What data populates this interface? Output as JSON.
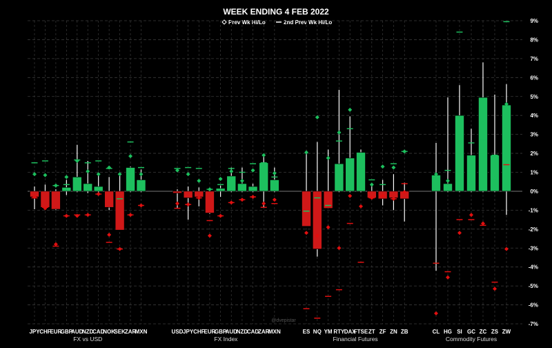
{
  "chart_data": {
    "type": "candlestick",
    "title": "WEEK ENDING 4 FEB 2022",
    "legend": [
      {
        "label": "Prev Wk Hi/Lo",
        "marker": "diamond"
      },
      {
        "label": "2nd Prev Wk Hi/Lo",
        "marker": "dash"
      }
    ],
    "y_axis": {
      "side": "right",
      "min": -7,
      "max": 9,
      "step": 1,
      "unit": "%",
      "tick_labels": [
        "-7%",
        "-6%",
        "-5%",
        "-4%",
        "-3%",
        "-2%",
        "-1%",
        "0%",
        "1%",
        "2%",
        "3%",
        "4%",
        "5%",
        "6%",
        "7%",
        "8%",
        "9%"
      ]
    },
    "watermark": "@dvepistar",
    "colors": {
      "up": "#1dbf5e",
      "down": "#d01818",
      "prev_up": "#1dbf5e",
      "prev_down": "#e01010",
      "wick": "#ffffff",
      "grid": "#3a3a3a"
    },
    "groups": [
      {
        "label": "FX vs USD",
        "items": [
          {
            "name": "JPY",
            "o": 0,
            "c": -0.3,
            "h": 0.25,
            "l": -0.95,
            "ph": 0.9,
            "pl": -0.3,
            "p2h": 1.5,
            "p2l": -0.35
          },
          {
            "name": "CHF",
            "o": 0,
            "c": -0.85,
            "h": 0.35,
            "l": -0.95,
            "ph": 0.85,
            "pl": -0.9,
            "p2h": 1.6,
            "p2l": -0.85
          },
          {
            "name": "EUR",
            "o": 0,
            "c": -0.95,
            "h": 0.1,
            "l": -1.0,
            "ph": 0.3,
            "pl": -2.8,
            "p2h": 0.3,
            "p2l": -2.9
          },
          {
            "name": "GBP",
            "o": 0,
            "c": 0.2,
            "h": 0.6,
            "l": -0.2,
            "ph": 0.75,
            "pl": -1.3,
            "p2h": 0.35,
            "p2l": -1.3
          },
          {
            "name": "AUD",
            "o": 0,
            "c": 0.75,
            "h": 2.45,
            "l": -0.05,
            "ph": 1.6,
            "pl": -1.3,
            "p2h": 1.65,
            "p2l": -1.25
          },
          {
            "name": "NZD",
            "o": 0,
            "c": 0.4,
            "h": 1.6,
            "l": -0.1,
            "ph": 1.05,
            "pl": -1.25,
            "p2h": 1.5,
            "p2l": -1.25
          },
          {
            "name": "CAD",
            "o": 0,
            "c": 0.25,
            "h": 0.85,
            "l": -0.15,
            "ph": 0.9,
            "pl": -0.15,
            "p2h": 1.6,
            "p2l": -0.15
          },
          {
            "name": "NOK",
            "o": 0,
            "c": -0.85,
            "h": 0.75,
            "l": -1.0,
            "ph": 1.25,
            "pl": -2.3,
            "p2h": 1.2,
            "p2l": -2.7
          },
          {
            "name": "SEK",
            "o": 0,
            "c": -2.05,
            "h": 0.85,
            "l": -2.05,
            "ph": 0.9,
            "pl": -3.05,
            "p2h": -0.4,
            "p2l": -3.05
          },
          {
            "name": "ZAR",
            "o": 0,
            "c": 1.25,
            "h": 1.3,
            "l": -0.05,
            "ph": 1.85,
            "pl": -1.25,
            "p2h": 2.6,
            "p2l": -1.25
          },
          {
            "name": "MXN",
            "o": 0,
            "c": 0.6,
            "h": 1.15,
            "l": -0.05,
            "ph": 0.9,
            "pl": -0.75,
            "p2h": 1.25,
            "p2l": -0.75
          }
        ]
      },
      {
        "label": "FX Index",
        "items": [
          {
            "name": "USD",
            "o": 0,
            "c": -0.1,
            "h": 0.1,
            "l": -0.9,
            "ph": 1.1,
            "pl": -0.65,
            "p2h": 1.2,
            "p2l": -0.9
          },
          {
            "name": "JPY",
            "o": 0,
            "c": -0.35,
            "h": 0.25,
            "l": -1.5,
            "ph": 0.9,
            "pl": -0.7,
            "p2h": 1.25,
            "p2l": -0.7
          },
          {
            "name": "CHF",
            "o": 0,
            "c": -0.3,
            "h": 0.2,
            "l": -0.8,
            "ph": 0.55,
            "pl": -0.35,
            "p2h": 1.2,
            "p2l": -0.35
          },
          {
            "name": "EUR",
            "o": 0,
            "c": -1.15,
            "h": 0.1,
            "l": -1.2,
            "ph": 0.1,
            "pl": -2.35,
            "p2h": 0.1,
            "p2l": -1.55
          },
          {
            "name": "GBP",
            "o": 0,
            "c": 0.15,
            "h": 0.3,
            "l": -0.3,
            "ph": 0.65,
            "pl": -1.3,
            "p2h": 0.35,
            "p2l": -1.3
          },
          {
            "name": "AUD",
            "o": 0,
            "c": 0.8,
            "h": 1.25,
            "l": -0.05,
            "ph": 1.05,
            "pl": -0.6,
            "p2h": 1.2,
            "p2l": -0.6
          },
          {
            "name": "NZD",
            "o": 0,
            "c": 0.4,
            "h": 1.25,
            "l": -0.05,
            "ph": 0.55,
            "pl": -0.45,
            "p2h": 1.0,
            "p2l": -0.45
          },
          {
            "name": "CAD",
            "o": 0,
            "c": 0.25,
            "h": 0.4,
            "l": -0.05,
            "ph": 1.1,
            "pl": -0.3,
            "p2h": 1.45,
            "p2l": -0.3
          },
          {
            "name": "ZAR",
            "o": 0,
            "c": 1.5,
            "h": 1.95,
            "l": -0.85,
            "ph": 1.9,
            "pl": -0.65,
            "p2h": 1.5,
            "p2l": -0.85
          },
          {
            "name": "MXN",
            "o": 0,
            "c": 0.6,
            "h": 1.25,
            "l": -0.05,
            "ph": 0.95,
            "pl": -0.45,
            "p2h": 0.75,
            "p2l": -0.65
          }
        ]
      },
      {
        "label": "Financial Futures",
        "items": [
          {
            "name": "ES",
            "o": 0,
            "c": -1.85,
            "h": 2.15,
            "l": -1.85,
            "ph": 2.05,
            "pl": -2.2,
            "p2h": -1.05,
            "p2l": -6.2
          },
          {
            "name": "NQ",
            "o": 0,
            "c": -3.05,
            "h": 2.6,
            "l": -3.45,
            "ph": 3.9,
            "pl": -2.35,
            "p2h": -0.35,
            "p2l": -6.7
          },
          {
            "name": "YM",
            "o": 0,
            "c": -0.9,
            "h": 2.2,
            "l": -0.9,
            "ph": 1.75,
            "pl": -1.9,
            "p2h": -0.75,
            "p2l": -5.55
          },
          {
            "name": "RTY",
            "o": 0,
            "c": 1.45,
            "h": 5.35,
            "l": -0.05,
            "ph": 3.1,
            "pl": -3.0,
            "p2h": 2.65,
            "p2l": -5.2
          },
          {
            "name": "DAX",
            "o": 0,
            "c": 1.75,
            "h": 3.95,
            "l": -0.05,
            "ph": 4.3,
            "pl": -0.25,
            "p2h": 3.3,
            "p2l": -1.7
          },
          {
            "name": "FTSE",
            "o": 0,
            "c": 2.05,
            "h": 2.2,
            "l": -0.05,
            "ph": 1.4,
            "pl": -0.8,
            "p2h": 1.2,
            "p2l": -3.75
          },
          {
            "name": "ZT",
            "o": 0,
            "c": -0.35,
            "h": 0.35,
            "l": -0.35,
            "ph": 0.35,
            "pl": -0.35,
            "p2h": 0.6,
            "p2l": -0.35
          },
          {
            "name": "ZF",
            "o": 0,
            "c": -0.4,
            "h": 0.6,
            "l": -0.75,
            "ph": 1.3,
            "pl": -0.25,
            "p2h": 0.35,
            "p2l": -0.25
          },
          {
            "name": "ZN",
            "o": 0,
            "c": -0.35,
            "h": 0.9,
            "l": -1.0,
            "ph": 1.25,
            "pl": -0.4,
            "p2h": 1.45,
            "p2l": -0.4
          },
          {
            "name": "ZB",
            "o": 0,
            "c": -0.4,
            "h": 0.45,
            "l": -1.6,
            "ph": 2.1,
            "pl": -0.05,
            "p2h": 2.1,
            "p2l": 0.4
          }
        ]
      },
      {
        "label": "Commodity Futures",
        "items": [
          {
            "name": "CL",
            "o": 0,
            "c": 0.85,
            "h": 2.55,
            "l": -4.2,
            "ph": 0.9,
            "pl": -6.45,
            "p2h": -3.8,
            "p2l": -3.8
          },
          {
            "name": "HG",
            "o": 0,
            "c": 0.4,
            "h": 4.95,
            "l": -0.05,
            "ph": 0.55,
            "pl": -4.55,
            "p2h": 1.1,
            "p2l": -4.25
          },
          {
            "name": "SI",
            "o": 0,
            "c": 4.0,
            "h": 5.6,
            "l": -0.05,
            "ph": 2.6,
            "pl": -2.2,
            "p2h": 8.4,
            "p2l": -1.5
          },
          {
            "name": "GC",
            "o": 0,
            "c": 1.9,
            "h": 3.3,
            "l": -0.05,
            "ph": 0.45,
            "pl": -1.25,
            "p2h": 2.55,
            "p2l": -1.5
          },
          {
            "name": "ZC",
            "o": 0,
            "c": 4.95,
            "h": 6.8,
            "l": -0.05,
            "ph": 3.6,
            "pl": -1.7,
            "p2h": 2.7,
            "p2l": -1.8
          },
          {
            "name": "ZS",
            "o": 0,
            "c": 1.9,
            "h": 5.1,
            "l": -0.05,
            "ph": 0.7,
            "pl": -5.15,
            "p2h": 1.9,
            "p2l": -4.8
          },
          {
            "name": "ZW",
            "o": 0,
            "c": 4.55,
            "h": 5.65,
            "l": -1.25,
            "ph": 4.6,
            "pl": -3.05,
            "p2h": 8.95,
            "p2l": 1.4
          }
        ]
      }
    ]
  }
}
